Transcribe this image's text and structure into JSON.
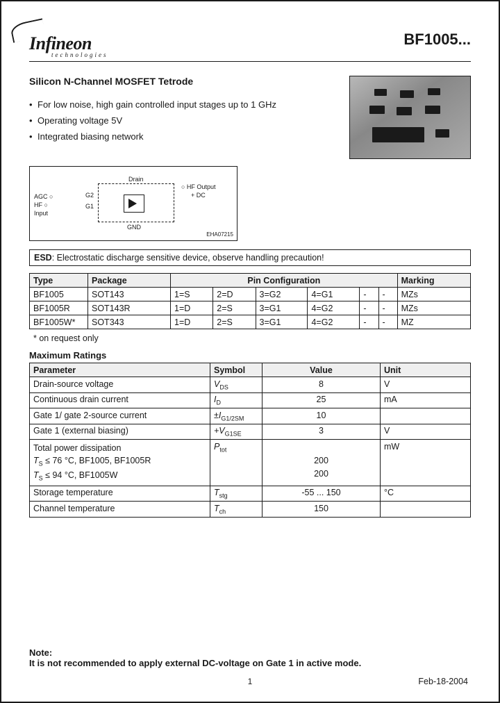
{
  "header": {
    "brand": "Infineon",
    "tagline": "technologies",
    "part_number": "BF1005..."
  },
  "product_title": "Silicon N-Channel MOSFET Tetrode",
  "features": [
    "For low noise, high gain controlled input stages up to 1 GHz",
    "Operating voltage 5V",
    "Integrated biasing network"
  ],
  "diagram": {
    "agc": "AGC ○",
    "hf": "HF ○",
    "input": "Input",
    "g2": "G2",
    "g1": "G1",
    "drain": "Drain",
    "hfout": "○ HF Output",
    "dc": "+ DC",
    "gnd": "GND",
    "code": "EHA07215"
  },
  "esd": {
    "prefix": "ESD",
    "text": ": Electrostatic discharge sensitive device, observe handling precaution!"
  },
  "type_table": {
    "headers": [
      "Type",
      "Package",
      "Pin Configuration",
      "Marking"
    ],
    "rows": [
      [
        "BF1005",
        "SOT143",
        "1=S",
        "2=D",
        "3=G2",
        "4=G1",
        "-",
        "-",
        "MZs"
      ],
      [
        "BF1005R",
        "SOT143R",
        "1=D",
        "2=S",
        "3=G1",
        "4=G2",
        "-",
        "-",
        "MZs"
      ],
      [
        "BF1005W*",
        "SOT343",
        "1=D",
        "2=S",
        "3=G1",
        "4=G2",
        "-",
        "-",
        "MZ"
      ]
    ]
  },
  "footnote": "* on request only",
  "ratings_title": "Maximum Ratings",
  "ratings_table": {
    "headers": [
      "Parameter",
      "Symbol",
      "Value",
      "Unit"
    ],
    "rows": [
      {
        "param": "Drain-source voltage",
        "symbol": "V",
        "sub": "DS",
        "value": "8",
        "unit": "V"
      },
      {
        "param": "Continuous drain current",
        "symbol": "I",
        "sub": "D",
        "value": "25",
        "unit": "mA"
      },
      {
        "param": "Gate 1/ gate 2-source current",
        "symbol": "±I",
        "sub": "G1/2SM",
        "value": "10",
        "unit": ""
      },
      {
        "param": "Gate 1 (external biasing)",
        "symbol": "+V",
        "sub": "G1SE",
        "value": "3",
        "unit": "V"
      }
    ],
    "power_row": {
      "param_line1": "Total power dissipation",
      "param_line2_a": "T",
      "param_line2_b": " ≤ 76 °C, BF1005, BF1005R",
      "param_line3_a": "T",
      "param_line3_b": " ≤ 94 °C, BF1005W",
      "sub_s": "S",
      "symbol": "P",
      "symbol_sub": "tot",
      "value1": "",
      "value2": "200",
      "value3": "200",
      "unit": "mW"
    },
    "last_rows": [
      {
        "param": "Storage temperature",
        "symbol": "T",
        "sub": "stg",
        "value": "-55 ... 150",
        "unit": "°C"
      },
      {
        "param": "Channel temperature",
        "symbol": "T",
        "sub": "ch",
        "value": "150",
        "unit": ""
      }
    ]
  },
  "note": {
    "label": "Note:",
    "text": "It is not recommended to apply external DC-voltage on Gate 1 in active mode."
  },
  "page_number": "1",
  "page_date": "Feb-18-2004"
}
